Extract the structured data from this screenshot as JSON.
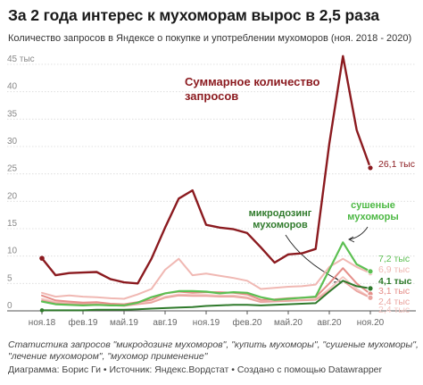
{
  "title": "За 2 года интерес к мухоморам вырос в 2,5 раза",
  "subtitle": "Количество запросов в Яндексе о покупке и употреблении мухоморов (ноя. 2018 - 2020)",
  "notes": "Статистика запросов \"микродозинг мухоморов\", \"купить мухоморы\", \"сушеные мухоморы\", \"лечение мухомором\", \"мухомор применение\"",
  "byline": "Диаграмма: Борис Ги • Источник: Яндекс.Вордстат • Создано с помощью Datawrapper",
  "chart_data": {
    "type": "line",
    "title": "За 2 года интерес к мухоморам вырос в 2,5 раза",
    "subtitle": "Количество запросов в Яндексе о покупке и употреблении мухоморов (ноя. 2018 - 2020)",
    "unit": "тыс",
    "ylim": [
      0,
      45
    ],
    "y_ticks": [
      0,
      5,
      10,
      15,
      20,
      25,
      30,
      35,
      40,
      45
    ],
    "y_tick_labels": [
      "0",
      "5",
      "10",
      "15",
      "20",
      "25",
      "30",
      "35",
      "40",
      "45 тыс"
    ],
    "x_tick_labels": [
      "ноя.18",
      "фев.19",
      "май.19",
      "авг.19",
      "ноя.19",
      "фев.20",
      "май.20",
      "авг.20",
      "ноя.20"
    ],
    "x_tick_index": [
      0,
      3,
      6,
      9,
      12,
      15,
      18,
      21,
      24
    ],
    "grid": true,
    "x": [
      "ноя.18",
      "дек.18",
      "янв.19",
      "фев.19",
      "мар.19",
      "апр.19",
      "май.19",
      "июн.19",
      "июл.19",
      "авг.19",
      "сен.19",
      "окт.19",
      "ноя.19",
      "дек.19",
      "янв.20",
      "фев.20",
      "мар.20",
      "апр.20",
      "май.20",
      "июн.20",
      "июл.20",
      "авг.20",
      "сен.20",
      "окт.20",
      "ноя.20"
    ],
    "series": [
      {
        "color": "#8b1a1f",
        "width": 2.4,
        "values": [
          9.6,
          6.5,
          6.9,
          7.0,
          7.1,
          5.8,
          5.2,
          5.0,
          9.5,
          15.2,
          20.5,
          22.0,
          15.7,
          15.2,
          14.9,
          14.2,
          11.6,
          8.8,
          10.3,
          10.5,
          11.3,
          30.5,
          46.5,
          33.0,
          26.1
        ],
        "end_label": "26,1 тыс"
      },
      {
        "color": "#f0b8b3",
        "width": 2,
        "values": [
          3.3,
          2.6,
          2.8,
          2.6,
          2.5,
          2.3,
          2.2,
          3.0,
          4.0,
          7.5,
          9.5,
          6.5,
          6.8,
          6.4,
          6.0,
          5.5,
          4.0,
          4.2,
          4.4,
          4.5,
          4.8,
          8.0,
          9.5,
          8.0,
          6.9
        ],
        "end_label": "6,9 тыс"
      },
      {
        "color": "#e58f8a",
        "width": 2,
        "values": [
          2.8,
          1.9,
          1.7,
          1.5,
          1.6,
          1.3,
          1.2,
          1.6,
          2.0,
          3.2,
          3.5,
          3.3,
          3.4,
          3.4,
          3.3,
          3.0,
          2.0,
          2.1,
          2.3,
          2.4,
          2.5,
          5.0,
          7.8,
          5.0,
          3.1
        ],
        "end_label": "3,1 тыс"
      },
      {
        "color": "#f4c4bf",
        "width": 1.8,
        "values": [
          2.2,
          1.6,
          1.5,
          1.3,
          1.3,
          1.1,
          1.0,
          1.3,
          1.6,
          2.6,
          3.0,
          2.9,
          2.9,
          2.8,
          2.8,
          2.5,
          1.7,
          1.8,
          1.9,
          2.0,
          2.1,
          4.0,
          6.2,
          4.0,
          2.4
        ],
        "end_label": "2,4 тыс"
      },
      {
        "color": "#eaa5a0",
        "width": 1.8,
        "values": [
          1.9,
          1.4,
          1.3,
          1.2,
          1.2,
          1.0,
          0.9,
          1.2,
          1.5,
          2.4,
          2.8,
          2.7,
          2.7,
          2.6,
          2.6,
          2.3,
          1.6,
          1.7,
          1.8,
          1.9,
          2.0,
          3.6,
          5.5,
          3.6,
          2.4
        ],
        "end_label": "2,4 тыс"
      },
      {
        "color": "#5cbf52",
        "width": 2.2,
        "values": [
          1.7,
          1.2,
          1.1,
          1.0,
          1.1,
          1.0,
          1.0,
          1.5,
          2.5,
          3.2,
          3.6,
          3.6,
          3.5,
          3.2,
          3.4,
          3.3,
          2.5,
          2.0,
          2.2,
          2.4,
          2.6,
          7.5,
          12.5,
          8.5,
          7.2
        ],
        "end_label": "7,2 тыс"
      },
      {
        "color": "#2f7a2b",
        "width": 2,
        "values": [
          0.1,
          0.1,
          0.1,
          0.1,
          0.2,
          0.2,
          0.2,
          0.3,
          0.4,
          0.5,
          0.6,
          0.7,
          0.9,
          1.0,
          1.1,
          1.1,
          1.0,
          1.1,
          1.2,
          1.3,
          1.4,
          3.5,
          5.5,
          4.5,
          4.1
        ],
        "end_label": "4,1 тыс"
      }
    ],
    "annotations": [
      {
        "text_lines": [
          "Суммарное количество",
          "запросов"
        ],
        "color": "#8b1a1f"
      },
      {
        "text_lines": [
          "микродозинг",
          "мухоморов"
        ],
        "color": "#2f7a2b"
      },
      {
        "text_lines": [
          "сушеные",
          "мухоморы"
        ],
        "color": "#4cb843"
      }
    ]
  }
}
